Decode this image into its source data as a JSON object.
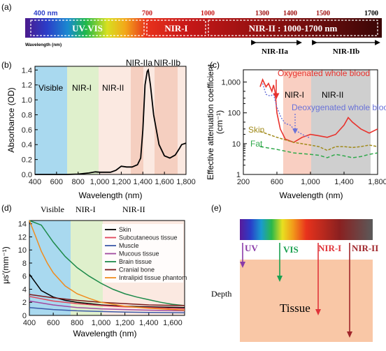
{
  "panel_a": {
    "label": "(a)",
    "wl_labels": [
      "400 nm",
      "700",
      "1000",
      "1300",
      "1400",
      "1500",
      "1700"
    ],
    "boxes": [
      "UV-VIS",
      "NIR-I",
      "NIR-II : 1000-1700 nm"
    ],
    "axis_caption": "Wavelength (nm)",
    "sub_windows": [
      "NIR-IIa",
      "NIR-IIb"
    ]
  },
  "panel_b": {
    "label": "(b)",
    "regions": [
      "Visible",
      "NIR-I",
      "NIR-II",
      "NIR-IIa",
      "NIR-IIb"
    ],
    "ylabel": "Absorbance (OD)",
    "xlabel": "Wavelength (nm)",
    "yticks": [
      "0.0",
      "0.2",
      "0.4",
      "0.6",
      "0.8",
      "1.0",
      "1.2",
      "1.4"
    ],
    "xticks": [
      "400",
      "600",
      "800",
      "1,000",
      "1,200",
      "1,400",
      "1,600",
      "1,800"
    ]
  },
  "panel_c": {
    "label": "(c)",
    "regions": [
      "NIR-I",
      "NIR-II"
    ],
    "ylabel_1": "Effective attenuation coefficient",
    "ylabel_2": "(cm⁻¹)",
    "xlabel": "Wavelength (nm)",
    "yticks": [
      "1,000",
      "100",
      "10",
      "1"
    ],
    "xticks": [
      "200",
      "600",
      "1,000",
      "1,400",
      "1,800"
    ],
    "series_labels": [
      "Oxygenated whole blood",
      "Deoxygenated whole blood",
      "Skin",
      "Fat"
    ]
  },
  "panel_d": {
    "label": "(d)",
    "regions": [
      "Visible",
      "NIR-I",
      "NIR-II"
    ],
    "ylabel": "μs′(mm⁻¹)",
    "xlabel": "Wavelength (nm)",
    "yticks": [
      "0",
      "2",
      "4",
      "6",
      "8",
      "10",
      "12",
      "14"
    ],
    "xticks": [
      "400",
      "600",
      "800",
      "1,000",
      "1,200",
      "1,400",
      "1,600"
    ],
    "legend": [
      "Skin",
      "Subcutaneous tissue",
      "Muscle",
      "Mucous tissue",
      "Brain tissue",
      "Cranial bone",
      "Intralipid tissue phantom"
    ]
  },
  "panel_e": {
    "label": "(e)",
    "bands": [
      "UV",
      "VIS",
      "NIR-I",
      "NIR-II"
    ],
    "depth": "Depth",
    "tissue": "Tissue"
  },
  "colors": {
    "visible": "#a9d9ef",
    "nir1": "#dff0cc",
    "nir2": "#fbe9e1",
    "nir2a": "#f5cfc0",
    "tissue": "#f9c7a6",
    "skin": "#000000",
    "subcutaneous": "#e0455a",
    "muscle": "#3b5aa8",
    "mucous": "#a04aa0",
    "brain": "#1d8a4a",
    "cranial": "#7a1a1a",
    "intralipid": "#f08c1e",
    "oxy": "#e8322c",
    "deoxy": "#6a72d8",
    "skin_c": "#a08a1a",
    "fat_c": "#2fa84a",
    "uv_arrow": "#8a3aa8",
    "vis_arrow": "#1aa050",
    "nir1_arrow": "#e0343a",
    "nir2_arrow": "#a0252a"
  },
  "chart_data": [
    {
      "type": "line",
      "panel": "b",
      "xlabel": "Wavelength (nm)",
      "ylabel": "Absorbance (OD)",
      "xlim": [
        400,
        1800
      ],
      "ylim": [
        0,
        1.45
      ],
      "series": [
        {
          "x": [
            400,
            500,
            600,
            700,
            800,
            900,
            960,
            1000,
            1100,
            1150,
            1200,
            1250,
            1300,
            1350,
            1380,
            1400,
            1420,
            1440,
            1450,
            1470,
            1500,
            1550,
            1600,
            1650,
            1700,
            1740,
            1760,
            1800
          ],
          "y": [
            0.0,
            0.0,
            0.0,
            0.0,
            0.005,
            0.02,
            0.035,
            0.03,
            0.03,
            0.055,
            0.11,
            0.1,
            0.1,
            0.13,
            0.22,
            0.6,
            1.2,
            1.38,
            1.4,
            1.2,
            0.8,
            0.4,
            0.25,
            0.22,
            0.26,
            0.35,
            0.4,
            0.42
          ]
        }
      ]
    },
    {
      "type": "line",
      "panel": "c",
      "xlabel": "Wavelength (nm)",
      "ylabel": "Effective attenuation coefficient (cm-1)",
      "xlim": [
        200,
        1800
      ],
      "ylim": [
        1,
        2500
      ],
      "yscale": "log",
      "series": [
        {
          "name": "Oxygenated whole blood",
          "x": [
            400,
            430,
            470,
            500,
            540,
            560,
            580,
            600,
            640,
            700,
            800,
            900,
            1000,
            1100,
            1200,
            1300,
            1400,
            1450,
            1500,
            1600,
            1700,
            1800
          ],
          "y": [
            700,
            1200,
            700,
            900,
            500,
            800,
            450,
            100,
            30,
            14,
            11,
            16,
            20,
            18,
            16,
            20,
            40,
            70,
            50,
            30,
            22,
            30
          ]
        },
        {
          "name": "Deoxygenated whole blood",
          "x": [
            430,
            470,
            520,
            560,
            600,
            650,
            700,
            760,
            800,
            900,
            1000
          ],
          "y": [
            900,
            400,
            350,
            400,
            150,
            70,
            45,
            40,
            30,
            20,
            15
          ]
        },
        {
          "name": "Skin",
          "x": [
            400,
            600,
            800,
            1000,
            1100,
            1200,
            1300,
            1400,
            1500,
            1600,
            1700,
            1800
          ],
          "y": [
            25,
            16,
            11,
            9,
            8,
            6,
            8,
            8,
            7.5,
            8,
            9,
            8
          ]
        },
        {
          "name": "Fat",
          "x": [
            400,
            600,
            800,
            1000,
            1100,
            1200,
            1300,
            1400,
            1500,
            1600,
            1700,
            1800
          ],
          "y": [
            8,
            6.5,
            5,
            4.5,
            4.2,
            3.5,
            4.5,
            4,
            3.5,
            3.8,
            4.5,
            5
          ]
        }
      ]
    },
    {
      "type": "line",
      "panel": "d",
      "xlabel": "Wavelength (nm)",
      "ylabel": "μs′(mm-1)",
      "xlim": [
        400,
        1700
      ],
      "ylim": [
        0,
        14.5
      ],
      "series": [
        {
          "name": "Skin",
          "x": [
            400,
            500,
            600,
            700,
            800,
            1000,
            1200,
            1400,
            1700
          ],
          "y": [
            6.3,
            3.8,
            2.8,
            2.3,
            2.0,
            1.6,
            1.4,
            1.3,
            1.2
          ]
        },
        {
          "name": "Subcutaneous tissue",
          "x": [
            400,
            600,
            800,
            1000,
            1200,
            1400,
            1700
          ],
          "y": [
            2.9,
            2.2,
            1.8,
            1.5,
            1.3,
            1.2,
            1.0
          ]
        },
        {
          "name": "Muscle",
          "x": [
            400,
            600,
            800,
            1000,
            1200,
            1400,
            1700
          ],
          "y": [
            1.2,
            0.9,
            0.7,
            0.6,
            0.5,
            0.45,
            0.4
          ]
        },
        {
          "name": "Mucous tissue",
          "x": [
            400,
            600,
            800,
            1000,
            1200,
            1400,
            1700
          ],
          "y": [
            2.2,
            1.6,
            1.2,
            1.0,
            0.9,
            0.8,
            0.7
          ]
        },
        {
          "name": "Brain tissue",
          "x": [
            400,
            500,
            600,
            700,
            800,
            900,
            1000,
            1100,
            1200,
            1300,
            1400,
            1500,
            1600,
            1700
          ],
          "y": [
            14.5,
            13.8,
            11.2,
            9.0,
            7.3,
            6.0,
            4.9,
            4.0,
            3.3,
            2.8,
            2.4,
            2.0,
            1.7,
            1.5
          ]
        },
        {
          "name": "Cranial bone",
          "x": [
            400,
            600,
            800,
            1000,
            1200,
            1400,
            1700
          ],
          "y": [
            3.2,
            2.7,
            2.3,
            2.0,
            1.8,
            1.6,
            1.5
          ]
        },
        {
          "name": "Intralipid tissue phantom",
          "x": [
            400,
            450,
            500,
            550,
            600,
            700,
            800,
            900,
            1000,
            1200,
            1400,
            1700
          ],
          "y": [
            14.5,
            12.2,
            9.8,
            8.0,
            6.5,
            4.5,
            3.3,
            2.6,
            2.0,
            1.4,
            1.1,
            0.8
          ]
        }
      ]
    }
  ]
}
